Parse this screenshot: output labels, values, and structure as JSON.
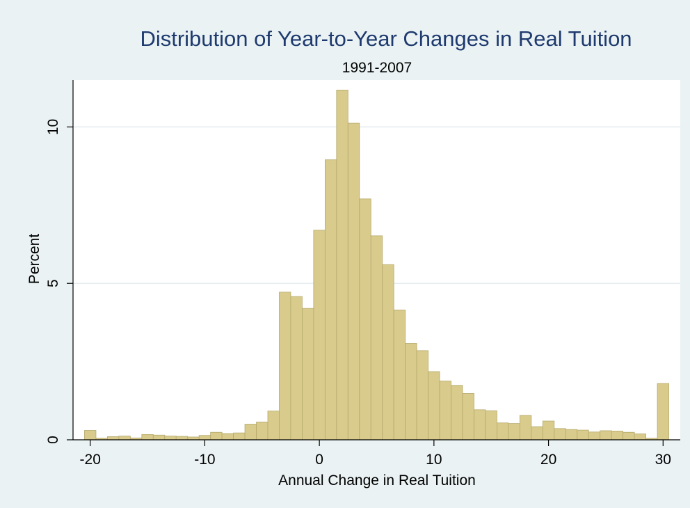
{
  "chart_data": {
    "type": "bar",
    "title": "Distribution of Year-to-Year Changes in Real Tuition",
    "subtitle": "1991-2007",
    "xlabel": "Annual Change in Real Tuition",
    "ylabel": "Percent",
    "xlim": [
      -21.5,
      31.5
    ],
    "ylim": [
      0,
      11.5
    ],
    "xticks": [
      -20,
      -10,
      0,
      10,
      20,
      30
    ],
    "yticks": [
      0,
      5,
      10
    ],
    "bin_width": 1,
    "bins": [
      {
        "x": -20,
        "value": 0.3
      },
      {
        "x": -19,
        "value": 0.05
      },
      {
        "x": -18,
        "value": 0.1
      },
      {
        "x": -17,
        "value": 0.12
      },
      {
        "x": -16,
        "value": 0.06
      },
      {
        "x": -15,
        "value": 0.17
      },
      {
        "x": -14,
        "value": 0.15
      },
      {
        "x": -13,
        "value": 0.12
      },
      {
        "x": -12,
        "value": 0.11
      },
      {
        "x": -11,
        "value": 0.09
      },
      {
        "x": -10,
        "value": 0.14
      },
      {
        "x": -9,
        "value": 0.24
      },
      {
        "x": -8,
        "value": 0.2
      },
      {
        "x": -7,
        "value": 0.22
      },
      {
        "x": -6,
        "value": 0.5
      },
      {
        "x": -5,
        "value": 0.57
      },
      {
        "x": -4,
        "value": 0.92
      },
      {
        "x": -3,
        "value": 4.72
      },
      {
        "x": -2,
        "value": 4.58
      },
      {
        "x": -1,
        "value": 4.2
      },
      {
        "x": 0,
        "value": 6.7
      },
      {
        "x": 1,
        "value": 8.95
      },
      {
        "x": 2,
        "value": 11.18
      },
      {
        "x": 3,
        "value": 10.12
      },
      {
        "x": 4,
        "value": 7.7
      },
      {
        "x": 5,
        "value": 6.52
      },
      {
        "x": 6,
        "value": 5.6
      },
      {
        "x": 7,
        "value": 4.15
      },
      {
        "x": 8,
        "value": 3.08
      },
      {
        "x": 9,
        "value": 2.85
      },
      {
        "x": 10,
        "value": 2.18
      },
      {
        "x": 11,
        "value": 1.88
      },
      {
        "x": 12,
        "value": 1.74
      },
      {
        "x": 13,
        "value": 1.48
      },
      {
        "x": 14,
        "value": 0.96
      },
      {
        "x": 15,
        "value": 0.93
      },
      {
        "x": 16,
        "value": 0.54
      },
      {
        "x": 17,
        "value": 0.52
      },
      {
        "x": 18,
        "value": 0.78
      },
      {
        "x": 19,
        "value": 0.42
      },
      {
        "x": 20,
        "value": 0.6
      },
      {
        "x": 21,
        "value": 0.36
      },
      {
        "x": 22,
        "value": 0.33
      },
      {
        "x": 23,
        "value": 0.31
      },
      {
        "x": 24,
        "value": 0.25
      },
      {
        "x": 25,
        "value": 0.29
      },
      {
        "x": 26,
        "value": 0.28
      },
      {
        "x": 27,
        "value": 0.24
      },
      {
        "x": 28,
        "value": 0.19
      },
      {
        "x": 29,
        "value": 0.05
      },
      {
        "x": 30,
        "value": 1.8
      }
    ],
    "grid": true,
    "legend": "none",
    "colors": {
      "outer_background": "#eaf2f3",
      "plot_background": "#ffffff",
      "bar_fill": "#d8cb8c",
      "bar_edge": "#b5a96a",
      "gridline": "#e3ecef",
      "title": "#1e3a6e",
      "text": "#000000"
    }
  }
}
